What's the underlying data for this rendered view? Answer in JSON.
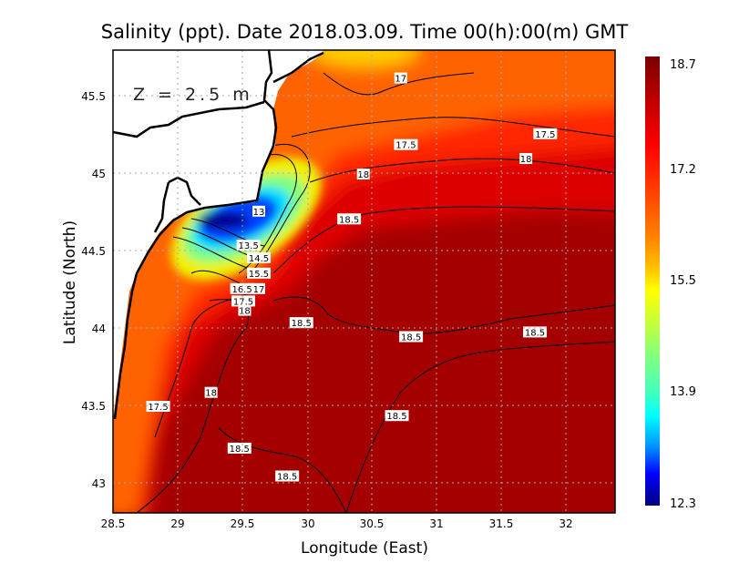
{
  "title": "Salinity (ppt). Date 2018.03.09. Time 00(h):00(m) GMT",
  "depth_label": "Z = 2.5 m",
  "x_axis": {
    "label": "Longitude (East)",
    "ticks": [
      "28.5",
      "29",
      "29.5",
      "30",
      "30.5",
      "31",
      "31.5",
      "32"
    ],
    "range": [
      28.5,
      32.38
    ]
  },
  "y_axis": {
    "label": "Latitude (North)",
    "ticks": [
      "45.5",
      "45",
      "44.5",
      "44",
      "43.5",
      "43"
    ],
    "range": [
      42.8,
      45.79
    ]
  },
  "colorbar": {
    "labels": [
      "18.7",
      "17.2",
      "15.5",
      "13.9",
      "12.3"
    ],
    "min": 12.3,
    "max": 18.7
  },
  "contour_labels": [
    {
      "text": "17",
      "lon": 30.73,
      "lat": 45.61
    },
    {
      "text": "17.5",
      "lon": 30.77,
      "lat": 45.18
    },
    {
      "text": "17.5",
      "lon": 31.85,
      "lat": 45.25
    },
    {
      "text": "18",
      "lon": 31.7,
      "lat": 45.09
    },
    {
      "text": "18",
      "lon": 30.44,
      "lat": 44.99
    },
    {
      "text": "13",
      "lon": 29.63,
      "lat": 44.75
    },
    {
      "text": "18.5",
      "lon": 30.33,
      "lat": 44.7
    },
    {
      "text": "13.5",
      "lon": 29.55,
      "lat": 44.53
    },
    {
      "text": "14.5",
      "lon": 29.63,
      "lat": 44.45
    },
    {
      "text": "15.5",
      "lon": 29.63,
      "lat": 44.35
    },
    {
      "text": "16.5",
      "lon": 29.5,
      "lat": 44.25
    },
    {
      "text": "17",
      "lon": 29.63,
      "lat": 44.25
    },
    {
      "text": "17.5",
      "lon": 29.51,
      "lat": 44.17
    },
    {
      "text": "18",
      "lon": 29.52,
      "lat": 44.11
    },
    {
      "text": "18.5",
      "lon": 29.96,
      "lat": 44.03
    },
    {
      "text": "18.5",
      "lon": 30.81,
      "lat": 43.94
    },
    {
      "text": "18.5",
      "lon": 31.77,
      "lat": 43.97
    },
    {
      "text": "18",
      "lon": 29.26,
      "lat": 43.58
    },
    {
      "text": "17.5",
      "lon": 28.85,
      "lat": 43.49
    },
    {
      "text": "18.5",
      "lon": 30.7,
      "lat": 43.43
    },
    {
      "text": "18.5",
      "lon": 29.48,
      "lat": 43.22
    },
    {
      "text": "18.5",
      "lon": 29.85,
      "lat": 43.04
    }
  ]
}
